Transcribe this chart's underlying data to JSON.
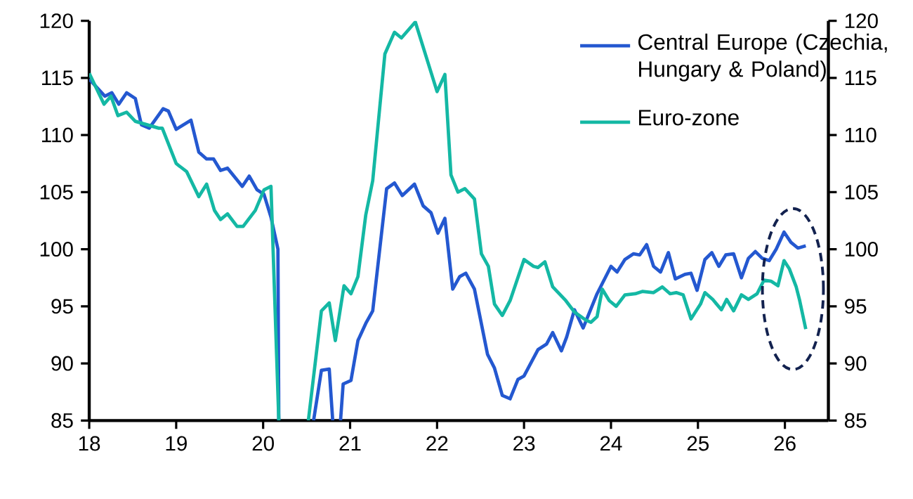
{
  "chart_data": {
    "type": "line",
    "xlim": [
      18,
      26.5
    ],
    "xticks": [
      18,
      19,
      20,
      21,
      22,
      23,
      24,
      25,
      26
    ],
    "ylim": [
      85,
      120
    ],
    "yticks": [
      85,
      90,
      95,
      100,
      105,
      110,
      115,
      120
    ],
    "y2lim": [
      85,
      120
    ],
    "y2ticks": [
      85,
      90,
      95,
      100,
      105,
      110,
      115,
      120
    ],
    "grid": false,
    "legend": "top right",
    "marker": "none",
    "line_style": "solid",
    "series": [
      {
        "name": "Central Europe (Czechia, Hungary & Poland)",
        "color": "#2458d0",
        "x": [
          18.0,
          18.18,
          18.26,
          18.34,
          18.43,
          18.53,
          18.6,
          18.69,
          18.85,
          18.91,
          19.0,
          19.17,
          19.26,
          19.35,
          19.43,
          19.51,
          19.59,
          19.76,
          19.84,
          19.93,
          20.01,
          20.09,
          20.17,
          20.18,
          20.38,
          20.58,
          20.67,
          20.76,
          20.8,
          20.85,
          20.89,
          20.92,
          21.01,
          21.09,
          21.18,
          21.26,
          21.42,
          21.51,
          21.6,
          21.74,
          21.84,
          21.93,
          22.01,
          22.09,
          22.18,
          22.26,
          22.33,
          22.43,
          22.58,
          22.66,
          22.75,
          22.84,
          22.93,
          23.0,
          23.16,
          23.26,
          23.33,
          23.43,
          23.49,
          23.58,
          23.68,
          23.84,
          24.0,
          24.07,
          24.16,
          24.26,
          24.33,
          24.41,
          24.49,
          24.57,
          24.66,
          24.74,
          24.85,
          24.92,
          24.99,
          25.08,
          25.16,
          25.24,
          25.32,
          25.41,
          25.5,
          25.58,
          25.66,
          25.74,
          25.82,
          25.9,
          25.99,
          26.07,
          26.15,
          26.24
        ],
        "values": [
          114.9,
          113.4,
          113.7,
          112.7,
          113.7,
          113.2,
          110.9,
          110.6,
          112.3,
          112.1,
          110.5,
          111.3,
          108.5,
          107.9,
          107.9,
          106.9,
          107.1,
          105.5,
          106.4,
          105.2,
          104.8,
          102.8,
          100.0,
          85,
          null,
          85,
          89.4,
          89.5,
          85,
          null,
          85,
          88.2,
          88.5,
          92.0,
          93.5,
          94.6,
          105.3,
          105.8,
          104.7,
          105.7,
          103.8,
          103.2,
          101.4,
          102.7,
          96.5,
          97.6,
          97.9,
          96.5,
          90.8,
          89.6,
          87.2,
          86.9,
          88.6,
          88.9,
          91.2,
          91.7,
          92.7,
          91.1,
          92.3,
          94.7,
          93.1,
          96.1,
          98.5,
          98.0,
          99.1,
          99.6,
          99.5,
          100.4,
          98.5,
          98.0,
          99.7,
          97.4,
          97.8,
          97.9,
          96.4,
          99.1,
          99.7,
          98.5,
          99.5,
          99.6,
          97.5,
          99.2,
          99.8,
          99.2,
          99.0,
          100.0,
          101.5,
          100.6,
          100.1,
          100.3
        ]
      },
      {
        "name": "Euro-zone",
        "color": "#14b8a4",
        "x": [
          18.0,
          18.17,
          18.25,
          18.33,
          18.43,
          18.53,
          18.8,
          18.84,
          19.0,
          19.12,
          19.26,
          19.35,
          19.44,
          19.51,
          19.59,
          19.7,
          19.77,
          19.91,
          20.01,
          20.09,
          20.18,
          20.35,
          20.52,
          20.67,
          20.76,
          20.83,
          20.93,
          21.01,
          21.09,
          21.18,
          21.26,
          21.4,
          21.51,
          21.59,
          21.75,
          22.0,
          22.09,
          22.16,
          22.24,
          22.32,
          22.43,
          22.51,
          22.59,
          22.66,
          22.75,
          22.84,
          23.0,
          23.11,
          23.16,
          23.24,
          23.33,
          23.48,
          23.58,
          23.71,
          23.77,
          23.84,
          23.9,
          23.98,
          24.06,
          24.16,
          24.28,
          24.36,
          24.49,
          24.59,
          24.68,
          24.75,
          24.83,
          24.92,
          25.03,
          25.08,
          25.17,
          25.27,
          25.33,
          25.41,
          25.5,
          25.58,
          25.68,
          25.76,
          25.84,
          25.92,
          25.99,
          26.05,
          26.13,
          26.17,
          26.24
        ],
        "values": [
          115.4,
          112.7,
          113.4,
          111.7,
          112.0,
          111.2,
          110.6,
          110.6,
          107.5,
          106.8,
          104.6,
          105.7,
          103.4,
          102.6,
          103.1,
          102.0,
          102.0,
          103.4,
          105.2,
          105.5,
          85,
          null,
          85,
          94.6,
          95.3,
          92.0,
          96.8,
          96.1,
          97.6,
          103.0,
          106.0,
          117.1,
          119.0,
          118.5,
          119.9,
          113.8,
          115.3,
          106.5,
          105.0,
          105.3,
          104.4,
          99.6,
          98.5,
          95.2,
          94.2,
          95.5,
          99.1,
          98.5,
          98.4,
          98.9,
          96.7,
          95.5,
          94.5,
          93.8,
          93.6,
          94.1,
          96.5,
          95.5,
          95.0,
          96.0,
          96.1,
          96.3,
          96.2,
          96.7,
          96.1,
          96.2,
          96.0,
          93.9,
          95.2,
          96.2,
          95.6,
          94.7,
          95.6,
          94.6,
          96.0,
          95.6,
          96.1,
          97.3,
          97.2,
          96.8,
          99.0,
          98.3,
          96.7,
          95.5,
          93.0
        ]
      }
    ]
  }
}
